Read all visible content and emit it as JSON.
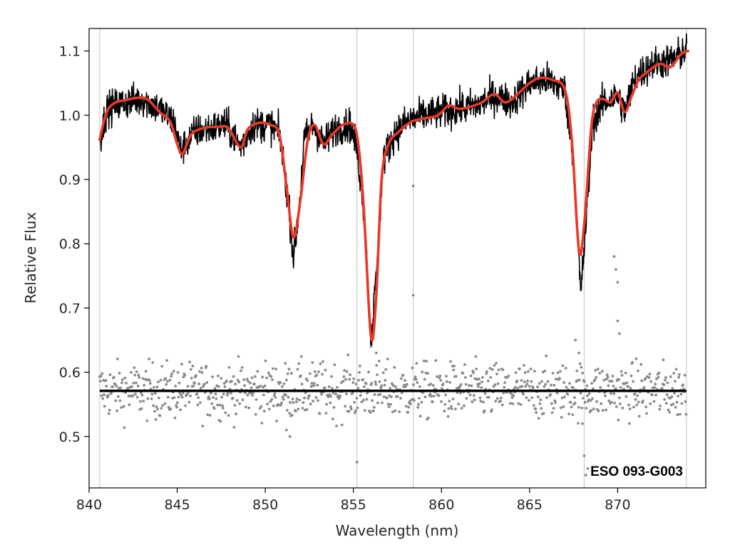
{
  "chart_data": {
    "type": "line",
    "title": "",
    "xlabel": "Wavelength (nm)",
    "ylabel": "Relative Flux",
    "xlim": [
      840.0,
      875.0
    ],
    "ylim": [
      0.42,
      1.135
    ],
    "xticks": [
      840,
      845,
      850,
      855,
      860,
      865,
      870
    ],
    "yticks": [
      0.5,
      0.6,
      0.7,
      0.8,
      0.9,
      1.0,
      1.1
    ],
    "annotation": "ESO 093-G003",
    "grid": false,
    "vertical_lines_nm": [
      840.6,
      855.2,
      858.4,
      868.1,
      873.9
    ],
    "reference_level": 0.571,
    "series": [
      {
        "role": "observed spectrum",
        "color": "#000000",
        "baseline": [
          [
            840.6,
            0.96
          ],
          [
            841.0,
            1.01
          ],
          [
            842.0,
            1.02
          ],
          [
            843.0,
            1.025
          ],
          [
            844.0,
            1.01
          ],
          [
            844.8,
            0.99
          ],
          [
            845.2,
            0.945
          ],
          [
            846.0,
            0.975
          ],
          [
            847.0,
            0.98
          ],
          [
            847.8,
            0.985
          ],
          [
            848.6,
            0.95
          ],
          [
            849.3,
            0.985
          ],
          [
            850.3,
            0.985
          ],
          [
            850.8,
            0.97
          ],
          [
            851.3,
            0.87
          ],
          [
            851.6,
            0.78
          ],
          [
            851.9,
            0.85
          ],
          [
            852.2,
            0.96
          ],
          [
            852.7,
            0.985
          ],
          [
            853.3,
            0.955
          ],
          [
            854.0,
            0.98
          ],
          [
            854.8,
            0.985
          ],
          [
            855.2,
            0.95
          ],
          [
            855.6,
            0.85
          ],
          [
            856.0,
            0.65
          ],
          [
            856.3,
            0.75
          ],
          [
            856.7,
            0.93
          ],
          [
            857.3,
            0.97
          ],
          [
            858.0,
            0.99
          ],
          [
            859.0,
            1.0
          ],
          [
            860.0,
            1.005
          ],
          [
            861.0,
            1.01
          ],
          [
            862.0,
            1.015
          ],
          [
            863.0,
            1.03
          ],
          [
            864.0,
            1.02
          ],
          [
            865.0,
            1.05
          ],
          [
            866.0,
            1.055
          ],
          [
            867.0,
            1.04
          ],
          [
            867.5,
            0.93
          ],
          [
            867.9,
            0.72
          ],
          [
            868.2,
            0.83
          ],
          [
            868.6,
            0.99
          ],
          [
            869.2,
            1.02
          ],
          [
            870.0,
            1.03
          ],
          [
            870.4,
            1.005
          ],
          [
            871.0,
            1.06
          ],
          [
            872.0,
            1.08
          ],
          [
            873.0,
            1.085
          ],
          [
            873.8,
            1.1
          ]
        ],
        "noise": 0.018
      },
      {
        "role": "model fit",
        "color": "#e8382a",
        "values": [
          [
            840.6,
            0.962
          ],
          [
            841.0,
            1.005
          ],
          [
            841.5,
            1.02
          ],
          [
            842.0,
            1.023
          ],
          [
            842.7,
            1.027
          ],
          [
            843.3,
            1.025
          ],
          [
            844.0,
            1.005
          ],
          [
            844.6,
            0.99
          ],
          [
            845.0,
            0.955
          ],
          [
            845.3,
            0.94
          ],
          [
            845.8,
            0.97
          ],
          [
            846.5,
            0.98
          ],
          [
            847.3,
            0.982
          ],
          [
            847.9,
            0.98
          ],
          [
            848.6,
            0.95
          ],
          [
            849.0,
            0.978
          ],
          [
            849.6,
            0.988
          ],
          [
            850.3,
            0.985
          ],
          [
            850.8,
            0.97
          ],
          [
            851.2,
            0.89
          ],
          [
            851.6,
            0.81
          ],
          [
            852.0,
            0.87
          ],
          [
            852.4,
            0.96
          ],
          [
            852.8,
            0.985
          ],
          [
            853.3,
            0.955
          ],
          [
            853.8,
            0.97
          ],
          [
            854.4,
            0.985
          ],
          [
            855.0,
            0.985
          ],
          [
            855.3,
            0.95
          ],
          [
            855.6,
            0.85
          ],
          [
            856.0,
            0.655
          ],
          [
            856.3,
            0.72
          ],
          [
            856.6,
            0.9
          ],
          [
            857.0,
            0.955
          ],
          [
            857.6,
            0.975
          ],
          [
            858.3,
            0.99
          ],
          [
            859.0,
            0.995
          ],
          [
            859.8,
            1.0
          ],
          [
            860.4,
            1.015
          ],
          [
            861.0,
            1.01
          ],
          [
            861.6,
            1.013
          ],
          [
            862.3,
            1.02
          ],
          [
            863.0,
            1.033
          ],
          [
            863.6,
            1.02
          ],
          [
            864.2,
            1.03
          ],
          [
            865.0,
            1.05
          ],
          [
            865.6,
            1.058
          ],
          [
            866.3,
            1.055
          ],
          [
            867.0,
            1.04
          ],
          [
            867.4,
            0.96
          ],
          [
            867.8,
            0.79
          ],
          [
            868.1,
            0.83
          ],
          [
            868.5,
            0.98
          ],
          [
            868.8,
            1.02
          ],
          [
            869.2,
            1.025
          ],
          [
            869.6,
            1.02
          ],
          [
            870.0,
            1.035
          ],
          [
            870.4,
            1.005
          ],
          [
            870.8,
            1.03
          ],
          [
            871.2,
            1.055
          ],
          [
            871.8,
            1.07
          ],
          [
            872.4,
            1.08
          ],
          [
            873.0,
            1.075
          ],
          [
            873.6,
            1.095
          ],
          [
            874.0,
            1.1
          ]
        ]
      },
      {
        "role": "residuals",
        "type": "scatter",
        "color": "#8a8a8a",
        "center": 0.571,
        "spread": 0.03,
        "outliers": [
          [
            856.0,
            0.64
          ],
          [
            856.3,
            0.63
          ],
          [
            858.4,
            0.89
          ],
          [
            858.4,
            0.72
          ],
          [
            867.6,
            0.65
          ],
          [
            867.8,
            0.63
          ],
          [
            868.0,
            0.52
          ],
          [
            868.1,
            0.47
          ],
          [
            868.2,
            0.44
          ],
          [
            868.3,
            0.45
          ],
          [
            869.8,
            0.78
          ],
          [
            869.9,
            0.76
          ],
          [
            870.0,
            0.74
          ],
          [
            870.0,
            0.68
          ],
          [
            870.1,
            0.66
          ],
          [
            855.2,
            0.46
          ],
          [
            851.2,
            0.51
          ],
          [
            851.4,
            0.5
          ]
        ]
      }
    ]
  }
}
